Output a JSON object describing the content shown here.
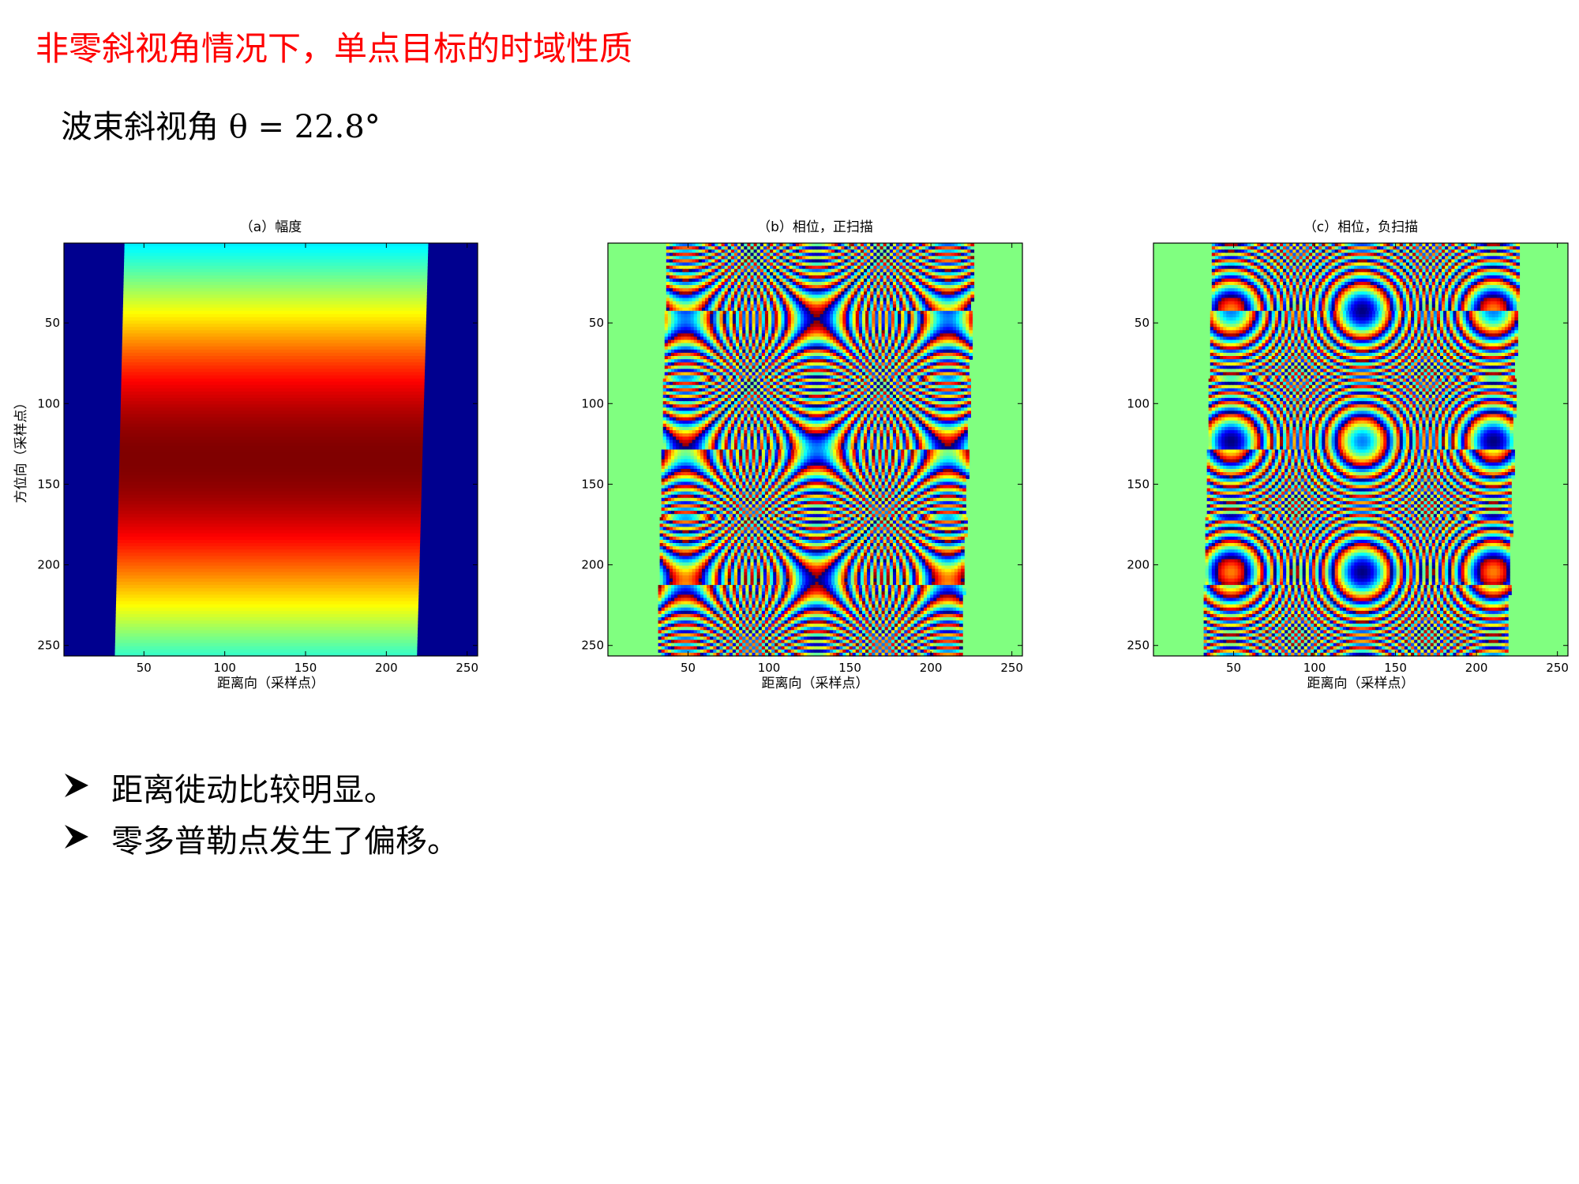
{
  "title": "非零斜视角情况下，单点目标的时域性质",
  "subtitle": "波束斜视角 θ = 22.8°",
  "bullets": [
    "距离徙动比较明显。",
    "零多普勒点发生了偏移。"
  ],
  "chart_data": [
    {
      "type": "image",
      "title": "（a）幅度",
      "xlabel": "距离向（采样点）",
      "ylabel": "方位向（采样点）",
      "xlim": [
        0.5,
        256.5
      ],
      "ylim": [
        0.5,
        256.5
      ],
      "y_direction": "reverse",
      "xticks": [
        50,
        100,
        150,
        200,
        250
      ],
      "yticks": [
        50,
        100,
        150,
        200,
        250
      ],
      "colormap": "jet"
    },
    {
      "type": "image",
      "title": "（b）相位，正扫描",
      "xlabel": "距离向（采样点）",
      "xlim": [
        0.5,
        256.5
      ],
      "ylim": [
        0.5,
        256.5
      ],
      "y_direction": "reverse",
      "xticks": [
        50,
        100,
        150,
        200,
        250
      ],
      "yticks": [
        50,
        100,
        150,
        200,
        250
      ],
      "colormap": "jet"
    },
    {
      "type": "image",
      "title": "（c）相位，负扫描",
      "xlabel": "距离向（采样点）",
      "xlim": [
        0.5,
        256.5
      ],
      "ylim": [
        0.5,
        256.5
      ],
      "y_direction": "reverse",
      "xticks": [
        50,
        100,
        150,
        200,
        250
      ],
      "yticks": [
        50,
        100,
        150,
        200,
        250
      ],
      "colormap": "jet"
    }
  ]
}
